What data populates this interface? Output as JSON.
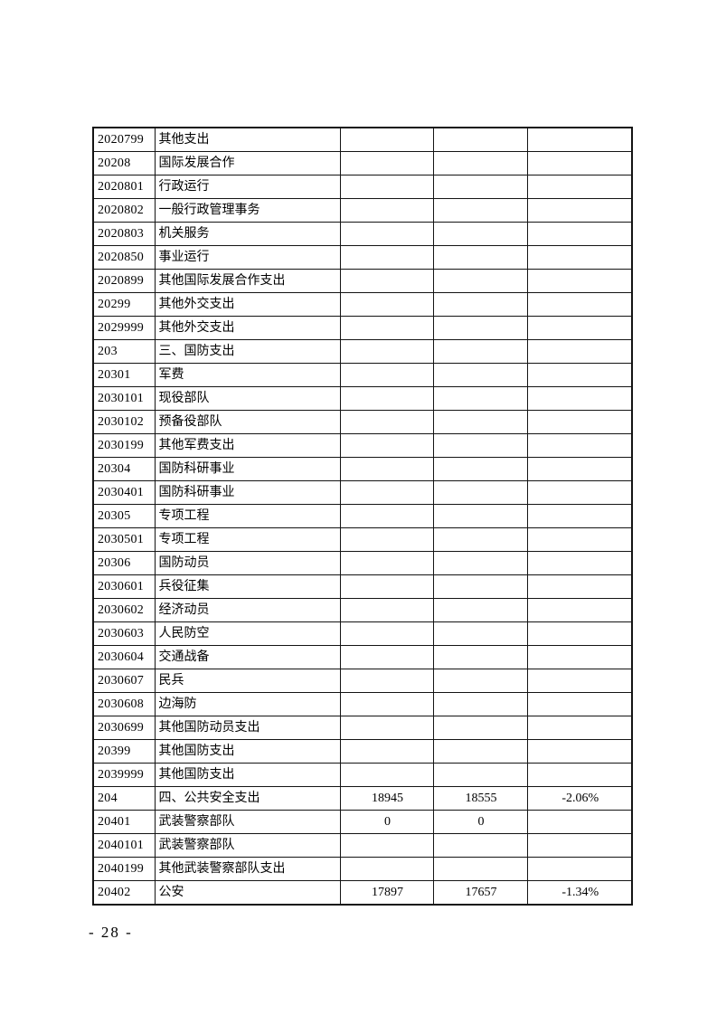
{
  "page": {
    "number_label": "- 28 -"
  },
  "table": {
    "rows": [
      {
        "code": "2020799",
        "name": "其他支出",
        "v1": "",
        "v2": "",
        "v3": ""
      },
      {
        "code": "20208",
        "name": "国际发展合作",
        "v1": "",
        "v2": "",
        "v3": ""
      },
      {
        "code": "2020801",
        "name": "行政运行",
        "v1": "",
        "v2": "",
        "v3": ""
      },
      {
        "code": "2020802",
        "name": "一般行政管理事务",
        "v1": "",
        "v2": "",
        "v3": ""
      },
      {
        "code": "2020803",
        "name": "机关服务",
        "v1": "",
        "v2": "",
        "v3": ""
      },
      {
        "code": "2020850",
        "name": "事业运行",
        "v1": "",
        "v2": "",
        "v3": ""
      },
      {
        "code": "2020899",
        "name": "其他国际发展合作支出",
        "v1": "",
        "v2": "",
        "v3": ""
      },
      {
        "code": "20299",
        "name": "其他外交支出",
        "v1": "",
        "v2": "",
        "v3": ""
      },
      {
        "code": "2029999",
        "name": "其他外交支出",
        "v1": "",
        "v2": "",
        "v3": ""
      },
      {
        "code": "203",
        "name": "三、国防支出",
        "v1": "",
        "v2": "",
        "v3": ""
      },
      {
        "code": "20301",
        "name": "军费",
        "v1": "",
        "v2": "",
        "v3": ""
      },
      {
        "code": "2030101",
        "name": "现役部队",
        "v1": "",
        "v2": "",
        "v3": ""
      },
      {
        "code": "2030102",
        "name": "预备役部队",
        "v1": "",
        "v2": "",
        "v3": ""
      },
      {
        "code": "2030199",
        "name": "其他军费支出",
        "v1": "",
        "v2": "",
        "v3": ""
      },
      {
        "code": "20304",
        "name": "国防科研事业",
        "v1": "",
        "v2": "",
        "v3": ""
      },
      {
        "code": "2030401",
        "name": "国防科研事业",
        "v1": "",
        "v2": "",
        "v3": ""
      },
      {
        "code": "20305",
        "name": "专项工程",
        "v1": "",
        "v2": "",
        "v3": ""
      },
      {
        "code": "2030501",
        "name": "专项工程",
        "v1": "",
        "v2": "",
        "v3": ""
      },
      {
        "code": "20306",
        "name": "国防动员",
        "v1": "",
        "v2": "",
        "v3": ""
      },
      {
        "code": "2030601",
        "name": "兵役征集",
        "v1": "",
        "v2": "",
        "v3": ""
      },
      {
        "code": "2030602",
        "name": "经济动员",
        "v1": "",
        "v2": "",
        "v3": ""
      },
      {
        "code": "2030603",
        "name": "人民防空",
        "v1": "",
        "v2": "",
        "v3": ""
      },
      {
        "code": "2030604",
        "name": "交通战备",
        "v1": "",
        "v2": "",
        "v3": ""
      },
      {
        "code": "2030607",
        "name": "民兵",
        "v1": "",
        "v2": "",
        "v3": ""
      },
      {
        "code": "2030608",
        "name": "边海防",
        "v1": "",
        "v2": "",
        "v3": ""
      },
      {
        "code": "2030699",
        "name": "其他国防动员支出",
        "v1": "",
        "v2": "",
        "v3": ""
      },
      {
        "code": "20399",
        "name": "其他国防支出",
        "v1": "",
        "v2": "",
        "v3": ""
      },
      {
        "code": "2039999",
        "name": "其他国防支出",
        "v1": "",
        "v2": "",
        "v3": ""
      },
      {
        "code": "204",
        "name": "四、公共安全支出",
        "v1": "18945",
        "v2": "18555",
        "v3": "-2.06%"
      },
      {
        "code": "20401",
        "name": "武装警察部队",
        "v1": "0",
        "v2": "0",
        "v3": ""
      },
      {
        "code": "2040101",
        "name": "武装警察部队",
        "v1": "",
        "v2": "",
        "v3": ""
      },
      {
        "code": "2040199",
        "name": "其他武装警察部队支出",
        "v1": "",
        "v2": "",
        "v3": ""
      },
      {
        "code": "20402",
        "name": "公安",
        "v1": "17897",
        "v2": "17657",
        "v3": "-1.34%"
      }
    ]
  }
}
